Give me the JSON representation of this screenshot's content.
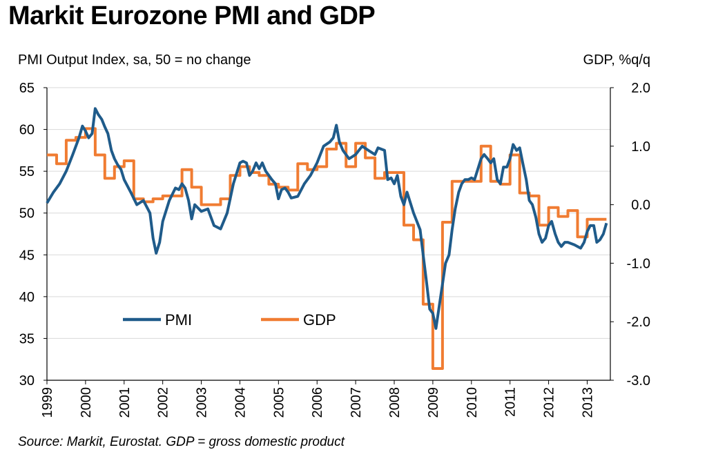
{
  "title": "Markit Eurozone PMI and GDP",
  "source_note": "Source: Markit, Eurostat. GDP = gross domestic product",
  "chart_data": {
    "type": "line",
    "title": "Markit Eurozone PMI and GDP",
    "y_left_label": "PMI Output Index, sa, 50 = no change",
    "y_right_label": "GDP, %q/q",
    "y_left_range": [
      30,
      65
    ],
    "y_left_ticks": [
      "65",
      "60",
      "55",
      "50",
      "45",
      "40",
      "35",
      "30"
    ],
    "y_right_range": [
      -3.0,
      2.0
    ],
    "y_right_ticks": [
      "2.0",
      "1.0",
      "0.0",
      "-1.0",
      "-2.0",
      "-3.0"
    ],
    "x_range": [
      1999,
      2013.6
    ],
    "x_ticks": [
      "1999",
      "2000",
      "2001",
      "2002",
      "2003",
      "2004",
      "2005",
      "2006",
      "2007",
      "2008",
      "2009",
      "2010",
      "2011",
      "2012",
      "2013"
    ],
    "grid": "horizontal",
    "legend_position": "lower-left",
    "series": [
      {
        "name": "PMI",
        "axis": "left",
        "color": "#1f5b8a",
        "points": [
          [
            1999.0,
            51.2
          ],
          [
            1999.17,
            52.5
          ],
          [
            1999.33,
            53.5
          ],
          [
            1999.5,
            55.0
          ],
          [
            1999.67,
            57.0
          ],
          [
            1999.83,
            59.0
          ],
          [
            1999.92,
            60.4
          ],
          [
            2000.0,
            59.8
          ],
          [
            2000.08,
            59.0
          ],
          [
            2000.17,
            59.5
          ],
          [
            2000.25,
            62.5
          ],
          [
            2000.33,
            61.8
          ],
          [
            2000.42,
            61.2
          ],
          [
            2000.5,
            60.3
          ],
          [
            2000.58,
            59.5
          ],
          [
            2000.67,
            57.5
          ],
          [
            2000.75,
            56.5
          ],
          [
            2000.83,
            55.8
          ],
          [
            2000.92,
            55.2
          ],
          [
            2001.0,
            54.0
          ],
          [
            2001.17,
            52.5
          ],
          [
            2001.33,
            51.0
          ],
          [
            2001.5,
            51.5
          ],
          [
            2001.67,
            50.0
          ],
          [
            2001.75,
            47.0
          ],
          [
            2001.83,
            45.2
          ],
          [
            2001.92,
            46.5
          ],
          [
            2002.0,
            49.0
          ],
          [
            2002.17,
            51.5
          ],
          [
            2002.33,
            53.0
          ],
          [
            2002.42,
            52.8
          ],
          [
            2002.5,
            53.5
          ],
          [
            2002.58,
            53.0
          ],
          [
            2002.67,
            51.5
          ],
          [
            2002.75,
            49.3
          ],
          [
            2002.83,
            51.0
          ],
          [
            2003.0,
            50.2
          ],
          [
            2003.17,
            50.5
          ],
          [
            2003.33,
            48.5
          ],
          [
            2003.5,
            48.1
          ],
          [
            2003.67,
            50.0
          ],
          [
            2003.83,
            53.5
          ],
          [
            2004.0,
            56.0
          ],
          [
            2004.08,
            56.2
          ],
          [
            2004.17,
            56.0
          ],
          [
            2004.25,
            54.5
          ],
          [
            2004.33,
            55.0
          ],
          [
            2004.42,
            56.0
          ],
          [
            2004.5,
            55.3
          ],
          [
            2004.58,
            56.0
          ],
          [
            2004.67,
            55.0
          ],
          [
            2004.83,
            54.0
          ],
          [
            2004.92,
            53.5
          ],
          [
            2005.0,
            51.7
          ],
          [
            2005.08,
            52.8
          ],
          [
            2005.17,
            53.0
          ],
          [
            2005.25,
            52.5
          ],
          [
            2005.33,
            51.8
          ],
          [
            2005.5,
            52.0
          ],
          [
            2005.67,
            53.5
          ],
          [
            2005.83,
            54.5
          ],
          [
            2006.0,
            56.0
          ],
          [
            2006.17,
            58.0
          ],
          [
            2006.33,
            58.5
          ],
          [
            2006.42,
            59.0
          ],
          [
            2006.5,
            60.5
          ],
          [
            2006.58,
            58.5
          ],
          [
            2006.67,
            57.5
          ],
          [
            2006.83,
            56.5
          ],
          [
            2007.0,
            57.0
          ],
          [
            2007.17,
            58.0
          ],
          [
            2007.33,
            57.5
          ],
          [
            2007.5,
            57.0
          ],
          [
            2007.58,
            57.8
          ],
          [
            2007.75,
            57.5
          ],
          [
            2007.83,
            54.0
          ],
          [
            2007.92,
            54.2
          ],
          [
            2008.0,
            53.5
          ],
          [
            2008.08,
            54.5
          ],
          [
            2008.17,
            52.0
          ],
          [
            2008.25,
            51.0
          ],
          [
            2008.33,
            52.5
          ],
          [
            2008.5,
            50.0
          ],
          [
            2008.67,
            48.0
          ],
          [
            2008.75,
            45.0
          ],
          [
            2008.83,
            42.0
          ],
          [
            2008.92,
            38.5
          ],
          [
            2009.0,
            38.0
          ],
          [
            2009.08,
            36.2
          ],
          [
            2009.17,
            39.0
          ],
          [
            2009.25,
            41.5
          ],
          [
            2009.33,
            44.0
          ],
          [
            2009.42,
            45.0
          ],
          [
            2009.5,
            48.0
          ],
          [
            2009.58,
            50.5
          ],
          [
            2009.67,
            52.5
          ],
          [
            2009.75,
            53.5
          ],
          [
            2009.83,
            54.0
          ],
          [
            2009.92,
            54.0
          ],
          [
            2010.0,
            54.2
          ],
          [
            2010.08,
            54.0
          ],
          [
            2010.25,
            56.5
          ],
          [
            2010.33,
            57.0
          ],
          [
            2010.42,
            56.5
          ],
          [
            2010.5,
            56.0
          ],
          [
            2010.58,
            56.5
          ],
          [
            2010.67,
            54.0
          ],
          [
            2010.75,
            53.5
          ],
          [
            2010.83,
            55.5
          ],
          [
            2010.92,
            55.5
          ],
          [
            2011.0,
            56.5
          ],
          [
            2011.08,
            58.2
          ],
          [
            2011.17,
            57.5
          ],
          [
            2011.25,
            57.8
          ],
          [
            2011.33,
            56.0
          ],
          [
            2011.42,
            54.0
          ],
          [
            2011.5,
            51.5
          ],
          [
            2011.58,
            51.0
          ],
          [
            2011.67,
            49.5
          ],
          [
            2011.75,
            47.5
          ],
          [
            2011.83,
            46.5
          ],
          [
            2011.92,
            47.0
          ],
          [
            2012.0,
            48.5
          ],
          [
            2012.08,
            49.0
          ],
          [
            2012.17,
            47.5
          ],
          [
            2012.25,
            46.5
          ],
          [
            2012.33,
            46.0
          ],
          [
            2012.42,
            46.5
          ],
          [
            2012.5,
            46.5
          ],
          [
            2012.67,
            46.2
          ],
          [
            2012.83,
            45.8
          ],
          [
            2012.92,
            46.5
          ],
          [
            2013.0,
            47.8
          ],
          [
            2013.08,
            48.5
          ],
          [
            2013.17,
            48.5
          ],
          [
            2013.25,
            46.5
          ],
          [
            2013.33,
            46.8
          ],
          [
            2013.42,
            47.5
          ],
          [
            2013.5,
            48.8
          ]
        ]
      },
      {
        "name": "GDP",
        "axis": "right",
        "color": "#f07c32",
        "points": [
          [
            1999.0,
            0.85
          ],
          [
            1999.25,
            0.7
          ],
          [
            1999.5,
            1.1
          ],
          [
            1999.75,
            1.15
          ],
          [
            2000.0,
            1.3
          ],
          [
            2000.25,
            0.85
          ],
          [
            2000.5,
            0.45
          ],
          [
            2000.75,
            0.65
          ],
          [
            2001.0,
            0.75
          ],
          [
            2001.25,
            0.1
          ],
          [
            2001.5,
            0.05
          ],
          [
            2001.75,
            0.1
          ],
          [
            2002.0,
            0.15
          ],
          [
            2002.25,
            0.15
          ],
          [
            2002.5,
            0.6
          ],
          [
            2002.75,
            0.3
          ],
          [
            2003.0,
            0.0
          ],
          [
            2003.25,
            0.0
          ],
          [
            2003.5,
            0.1
          ],
          [
            2003.75,
            0.5
          ],
          [
            2004.0,
            0.65
          ],
          [
            2004.25,
            0.55
          ],
          [
            2004.5,
            0.5
          ],
          [
            2004.75,
            0.35
          ],
          [
            2005.0,
            0.3
          ],
          [
            2005.25,
            0.25
          ],
          [
            2005.5,
            0.7
          ],
          [
            2005.75,
            0.6
          ],
          [
            2006.0,
            0.65
          ],
          [
            2006.25,
            0.95
          ],
          [
            2006.5,
            1.05
          ],
          [
            2006.75,
            0.65
          ],
          [
            2007.0,
            1.05
          ],
          [
            2007.25,
            0.8
          ],
          [
            2007.5,
            0.45
          ],
          [
            2007.75,
            0.55
          ],
          [
            2008.0,
            0.55
          ],
          [
            2008.25,
            -0.35
          ],
          [
            2008.5,
            -0.6
          ],
          [
            2008.75,
            -1.7
          ],
          [
            2009.0,
            -2.8
          ],
          [
            2009.25,
            -0.3
          ],
          [
            2009.5,
            0.4
          ],
          [
            2009.75,
            0.4
          ],
          [
            2010.0,
            0.4
          ],
          [
            2010.25,
            1.0
          ],
          [
            2010.5,
            0.4
          ],
          [
            2010.75,
            0.35
          ],
          [
            2011.0,
            0.85
          ],
          [
            2011.25,
            0.2
          ],
          [
            2011.5,
            0.15
          ],
          [
            2011.75,
            -0.35
          ],
          [
            2012.0,
            -0.05
          ],
          [
            2012.25,
            -0.2
          ],
          [
            2012.5,
            -0.1
          ],
          [
            2012.75,
            -0.55
          ],
          [
            2013.0,
            -0.25
          ],
          [
            2013.25,
            -0.25
          ]
        ]
      }
    ]
  }
}
